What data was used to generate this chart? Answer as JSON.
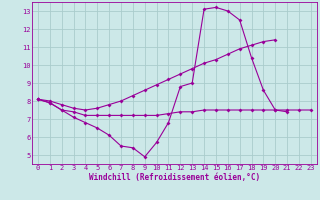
{
  "bg_color": "#cce8e8",
  "grid_color": "#aacccc",
  "line_color": "#990099",
  "marker": "D",
  "marker_size": 2,
  "xlabel": "Windchill (Refroidissement éolien,°C)",
  "xlabel_fontsize": 5.5,
  "tick_fontsize": 5.0,
  "xlim": [
    -0.5,
    23.5
  ],
  "ylim": [
    4.5,
    13.5
  ],
  "yticks": [
    5,
    6,
    7,
    8,
    9,
    10,
    11,
    12,
    13
  ],
  "xticks": [
    0,
    1,
    2,
    3,
    4,
    5,
    6,
    7,
    8,
    9,
    10,
    11,
    12,
    13,
    14,
    15,
    16,
    17,
    18,
    19,
    20,
    21,
    22,
    23
  ],
  "series1_x": [
    0,
    1,
    2,
    3,
    4,
    5,
    6,
    7,
    8,
    9,
    10,
    11,
    12,
    13,
    14,
    15,
    16,
    17,
    18,
    19,
    20,
    21
  ],
  "series1_y": [
    8.1,
    7.9,
    7.5,
    7.1,
    6.8,
    6.5,
    6.1,
    5.5,
    5.4,
    4.9,
    5.7,
    6.8,
    8.8,
    9.0,
    13.1,
    13.2,
    13.0,
    12.5,
    10.4,
    8.6,
    7.5,
    7.4
  ],
  "series2_x": [
    0,
    1,
    2,
    3,
    4,
    5,
    6,
    7,
    8,
    9,
    10,
    11,
    12,
    13,
    14,
    15,
    16,
    17,
    18,
    19,
    20,
    21,
    22,
    23
  ],
  "series2_y": [
    8.1,
    7.9,
    7.5,
    7.4,
    7.2,
    7.2,
    7.2,
    7.2,
    7.2,
    7.2,
    7.2,
    7.3,
    7.4,
    7.4,
    7.5,
    7.5,
    7.5,
    7.5,
    7.5,
    7.5,
    7.5,
    7.5,
    7.5,
    7.5
  ],
  "series3_x": [
    0,
    1,
    2,
    3,
    4,
    5,
    6,
    7,
    8,
    9,
    10,
    11,
    12,
    13,
    14,
    15,
    16,
    17,
    18,
    19,
    20
  ],
  "series3_y": [
    8.1,
    8.0,
    7.8,
    7.6,
    7.5,
    7.6,
    7.8,
    8.0,
    8.3,
    8.6,
    8.9,
    9.2,
    9.5,
    9.8,
    10.1,
    10.3,
    10.6,
    10.9,
    11.1,
    11.3,
    11.4
  ]
}
